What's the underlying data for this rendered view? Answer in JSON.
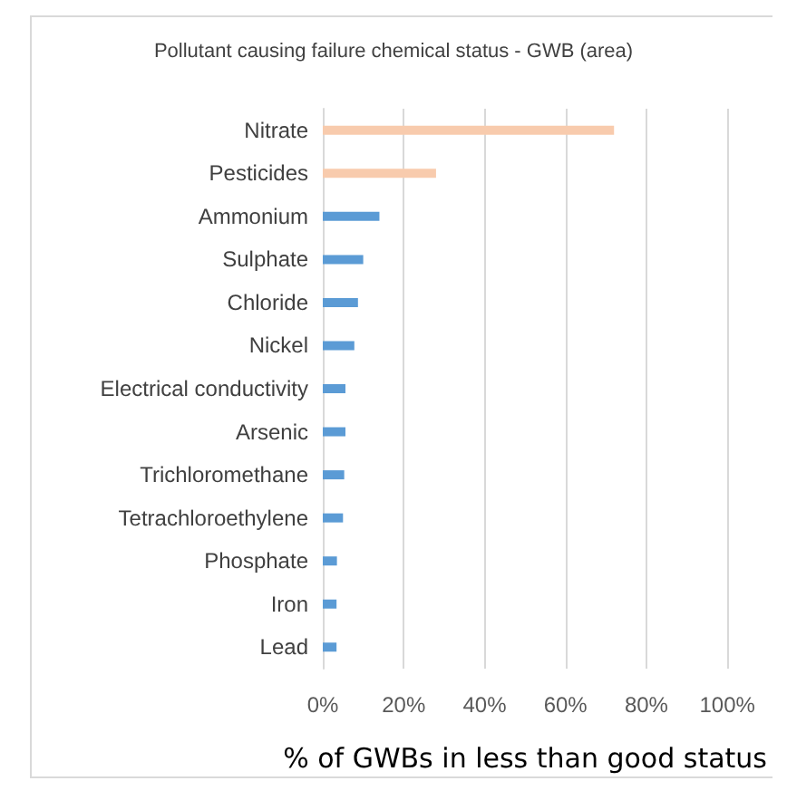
{
  "chart_data": {
    "type": "bar",
    "orientation": "horizontal",
    "title": "Pollutant causing failure chemical status - GWB (area)",
    "xlabel": "% of GWBs in less than good status",
    "categories": [
      "Nitrate",
      "Pesticides",
      "Ammonium",
      "Sulphate",
      "Chloride",
      "Nickel",
      "Electrical conductivity",
      "Arsenic",
      "Trichloromethane",
      "Tetrachloroethylene",
      "Phosphate",
      "Iron",
      "Lead"
    ],
    "values": [
      72,
      28,
      14,
      10,
      8.7,
      7.8,
      5.6,
      5.6,
      5.3,
      5,
      3.5,
      3.4,
      3.4
    ],
    "colors": [
      "#f8cbad",
      "#f8cbad",
      "#5b9bd5",
      "#5b9bd5",
      "#5b9bd5",
      "#5b9bd5",
      "#5b9bd5",
      "#5b9bd5",
      "#5b9bd5",
      "#5b9bd5",
      "#5b9bd5",
      "#5b9bd5",
      "#5b9bd5"
    ],
    "xlim": [
      0,
      100
    ],
    "xticks": [
      {
        "value": 0,
        "label": "0%"
      },
      {
        "value": 20,
        "label": "20%"
      },
      {
        "value": 40,
        "label": "40%"
      },
      {
        "value": 60,
        "label": "60%"
      },
      {
        "value": 80,
        "label": "80%"
      },
      {
        "value": 100,
        "label": "100%"
      }
    ],
    "grid": "x"
  }
}
